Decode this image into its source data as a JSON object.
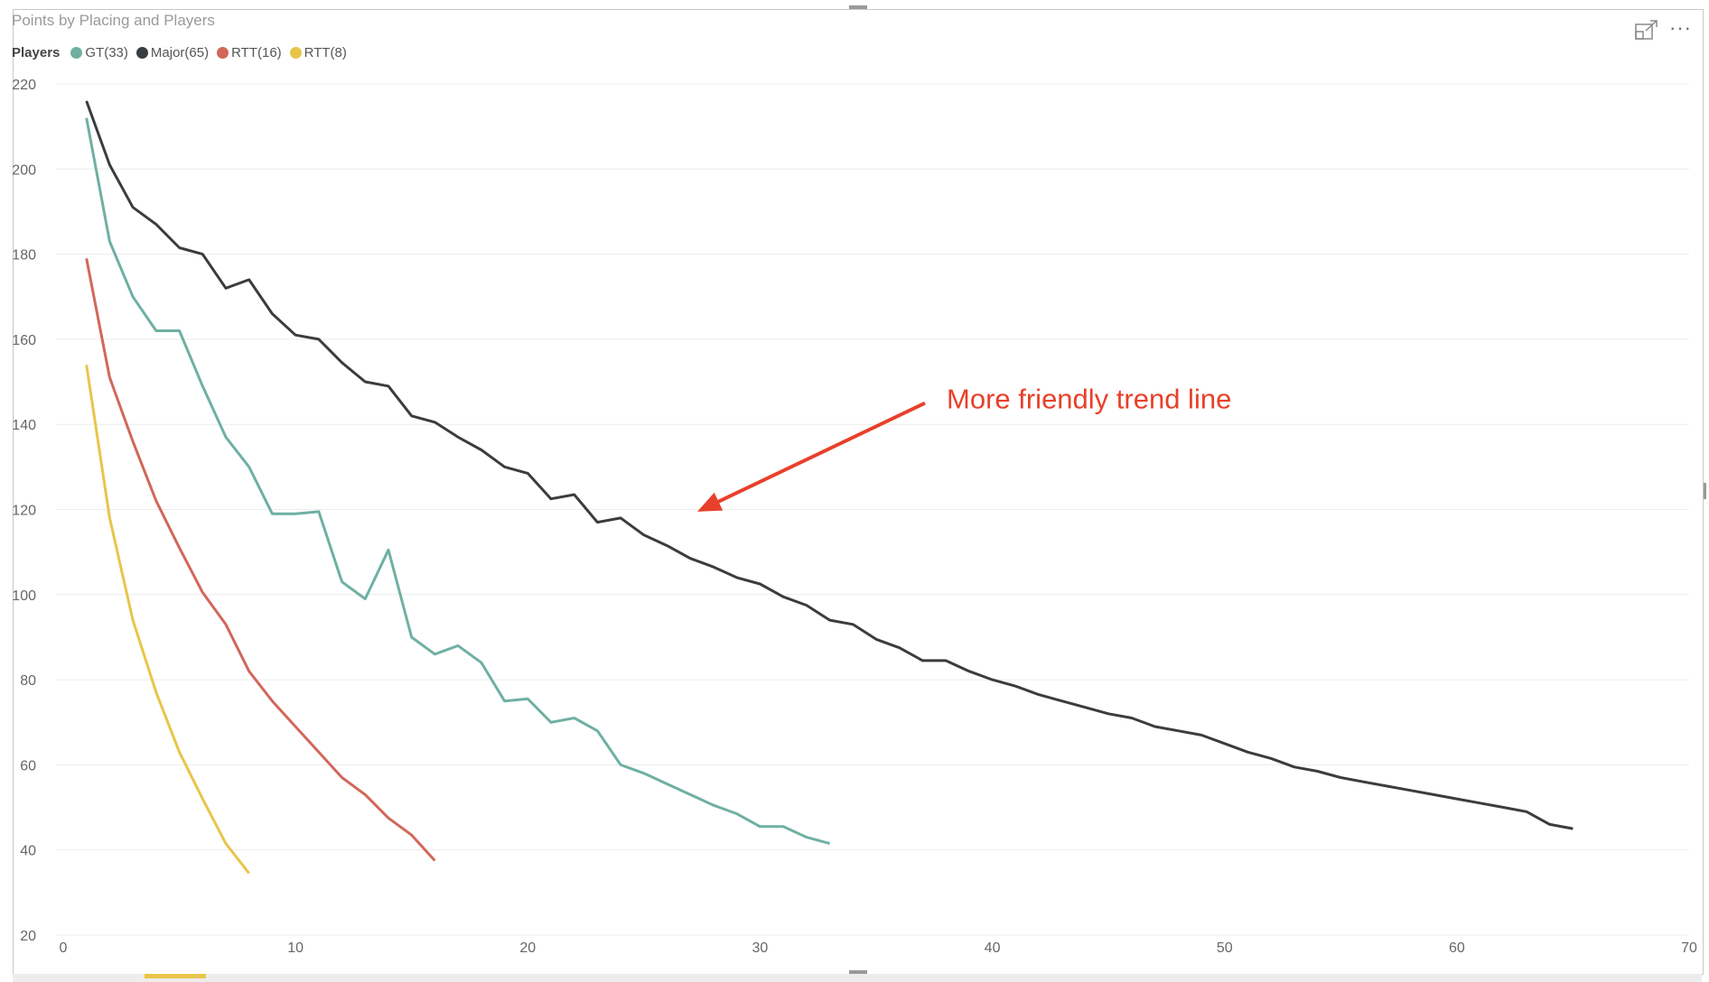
{
  "visual": {
    "title": "Points by Placing and Players",
    "focus_icon": "focus-mode-icon",
    "more_icon": "more-options-icon",
    "more_label": "···"
  },
  "legend": {
    "title": "Players",
    "items": [
      {
        "label": "GT(33)",
        "color": "#6fb0a3"
      },
      {
        "label": "Major(65)",
        "color": "#3a3d3f"
      },
      {
        "label": "RTT(16)",
        "color": "#d2675a"
      },
      {
        "label": "RTT(8)",
        "color": "#e8c54a"
      }
    ]
  },
  "annotation": {
    "text": "More friendly trend line",
    "color": "#e8402a"
  },
  "chart_data": {
    "type": "line",
    "title": "Points by Placing and Players",
    "xlabel": "",
    "ylabel": "",
    "xlim": [
      0,
      70
    ],
    "ylim": [
      20,
      220
    ],
    "xticks": [
      0,
      10,
      20,
      30,
      40,
      50,
      60,
      70
    ],
    "yticks": [
      20,
      40,
      60,
      80,
      100,
      120,
      140,
      160,
      180,
      200,
      220
    ],
    "grid": true,
    "legend_position": "top-left",
    "series": [
      {
        "name": "GT(33)",
        "color": "#6fb0a3",
        "x": [
          1,
          2,
          3,
          4,
          5,
          6,
          7,
          8,
          9,
          10,
          11,
          12,
          13,
          14,
          15,
          16,
          17,
          18,
          19,
          20,
          21,
          22,
          23,
          24,
          25,
          26,
          27,
          28,
          29,
          30,
          31,
          32,
          33
        ],
        "values": [
          212,
          183,
          170,
          162,
          162,
          149,
          137,
          130,
          119,
          119,
          119.5,
          103,
          99,
          110.5,
          90,
          86,
          88,
          84,
          75,
          75.5,
          70,
          71,
          68,
          60,
          58,
          55.5,
          53,
          50.5,
          48.5,
          45.5,
          45.5,
          43,
          41.5
        ]
      },
      {
        "name": "Major(65)",
        "color": "#3a3d3f",
        "x": [
          1,
          2,
          3,
          4,
          5,
          6,
          7,
          8,
          9,
          10,
          11,
          12,
          13,
          14,
          15,
          16,
          17,
          18,
          19,
          20,
          21,
          22,
          23,
          24,
          25,
          26,
          27,
          28,
          29,
          30,
          31,
          32,
          33,
          34,
          35,
          36,
          37,
          38,
          39,
          40,
          41,
          42,
          43,
          44,
          45,
          46,
          47,
          48,
          49,
          50,
          51,
          52,
          53,
          54,
          55,
          56,
          57,
          58,
          59,
          60,
          61,
          62,
          63,
          64,
          65
        ],
        "values": [
          216,
          201,
          191,
          187,
          181.5,
          180,
          172,
          174,
          166,
          161,
          160,
          154.5,
          150,
          149,
          142,
          140.5,
          137,
          134,
          130,
          128.5,
          122.5,
          123.5,
          117,
          118,
          114,
          111.5,
          108.5,
          106.5,
          104,
          102.5,
          99.5,
          97.5,
          94,
          93,
          89.5,
          87.5,
          84.5,
          84.5,
          82,
          80,
          78.5,
          76.5,
          75,
          73.5,
          72,
          71,
          69,
          68,
          67,
          65,
          63,
          61.5,
          59.5,
          58.5,
          57,
          56,
          55,
          54,
          53,
          52,
          51,
          50,
          49,
          46,
          45
        ]
      },
      {
        "name": "RTT(16)",
        "color": "#d2675a",
        "x": [
          1,
          2,
          3,
          4,
          5,
          6,
          7,
          8,
          9,
          10,
          11,
          12,
          13,
          14,
          15,
          16
        ],
        "values": [
          179,
          151,
          136,
          122,
          111,
          100.5,
          93,
          82,
          75,
          69,
          63,
          57,
          53,
          47.5,
          43.5,
          37.5
        ]
      },
      {
        "name": "RTT(8)",
        "color": "#e8c54a",
        "x": [
          1,
          2,
          3,
          4,
          5,
          6,
          7,
          8
        ],
        "values": [
          154,
          118,
          94,
          77,
          63,
          52,
          41.5,
          34.5
        ]
      }
    ],
    "annotations": [
      {
        "text": "More friendly trend line",
        "arrow_to": [
          27.3,
          119.5
        ],
        "arrow_from": [
          37.1,
          145
        ]
      }
    ]
  }
}
